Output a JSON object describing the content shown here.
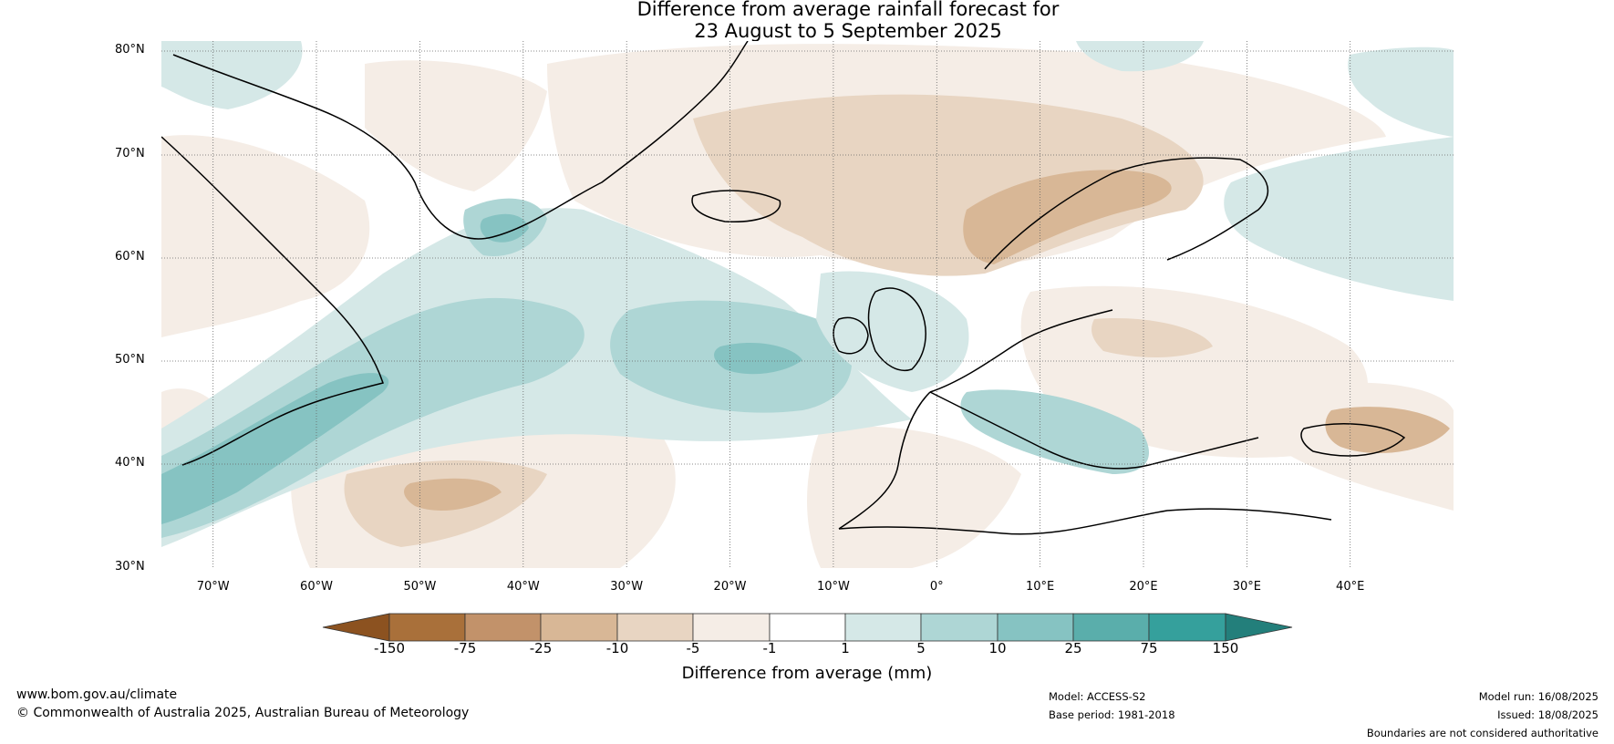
{
  "title": {
    "line1": "Difference from average rainfall forecast for",
    "line2": "23 August to 5 September 2025"
  },
  "map": {
    "latitude_labels": [
      "80°N",
      "70°N",
      "60°N",
      "50°N",
      "40°N",
      "30°N"
    ],
    "longitude_labels": [
      "70°W",
      "60°W",
      "50°W",
      "40°W",
      "30°W",
      "20°W",
      "10°W",
      "0°",
      "10°E",
      "20°E",
      "30°E",
      "40°E"
    ],
    "extent": {
      "lon_min": -75,
      "lon_max": 50,
      "lat_min": 30,
      "lat_max": 81
    }
  },
  "colorbar": {
    "ticks": [
      "-150",
      "-75",
      "-25",
      "-10",
      "-5",
      "-1",
      "1",
      "5",
      "10",
      "25",
      "75",
      "150"
    ],
    "colors": [
      "#8c5220",
      "#a9703a",
      "#c2926a",
      "#d8b796",
      "#e8d5c2",
      "#f5ede6",
      "#ffffff",
      "#d5e8e7",
      "#aed6d5",
      "#86c3c2",
      "#5aaeab",
      "#35a09c",
      "#237f7b"
    ],
    "label": "Difference from average (mm)"
  },
  "footer": {
    "website": "www.bom.gov.au/climate",
    "copyright": "© Commonwealth of Australia 2025, Australian Bureau of Meteorology",
    "model": "Model: ACCESS-S2",
    "base_period": "Base period: 1981-2018",
    "model_run": "Model run: 16/08/2025",
    "issued": "Issued: 18/08/2025",
    "disclaimer": "Boundaries are not considered authoritative"
  }
}
